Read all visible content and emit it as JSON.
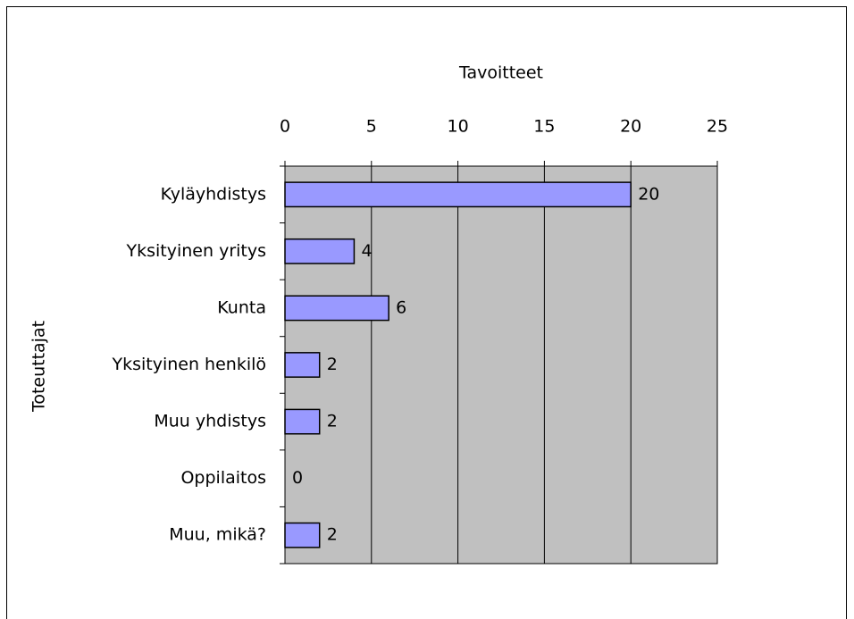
{
  "chart_data": {
    "type": "bar",
    "orientation": "horizontal",
    "x_label": "Tavoitteet",
    "y_label": "Toteuttajat",
    "categories": [
      "Kyläyhdistys",
      "Yksityinen yritys",
      "Kunta",
      "Yksityinen henkilö",
      "Muu yhdistys",
      "Oppilaitos",
      "Muu, mikä?"
    ],
    "values": [
      20,
      4,
      6,
      2,
      2,
      0,
      2
    ],
    "color": "#9999ff",
    "plot_background": "#c0c0c0",
    "xlim": [
      0,
      25
    ],
    "xticks": [
      0,
      5,
      10,
      15,
      20,
      25
    ],
    "grid": true
  }
}
